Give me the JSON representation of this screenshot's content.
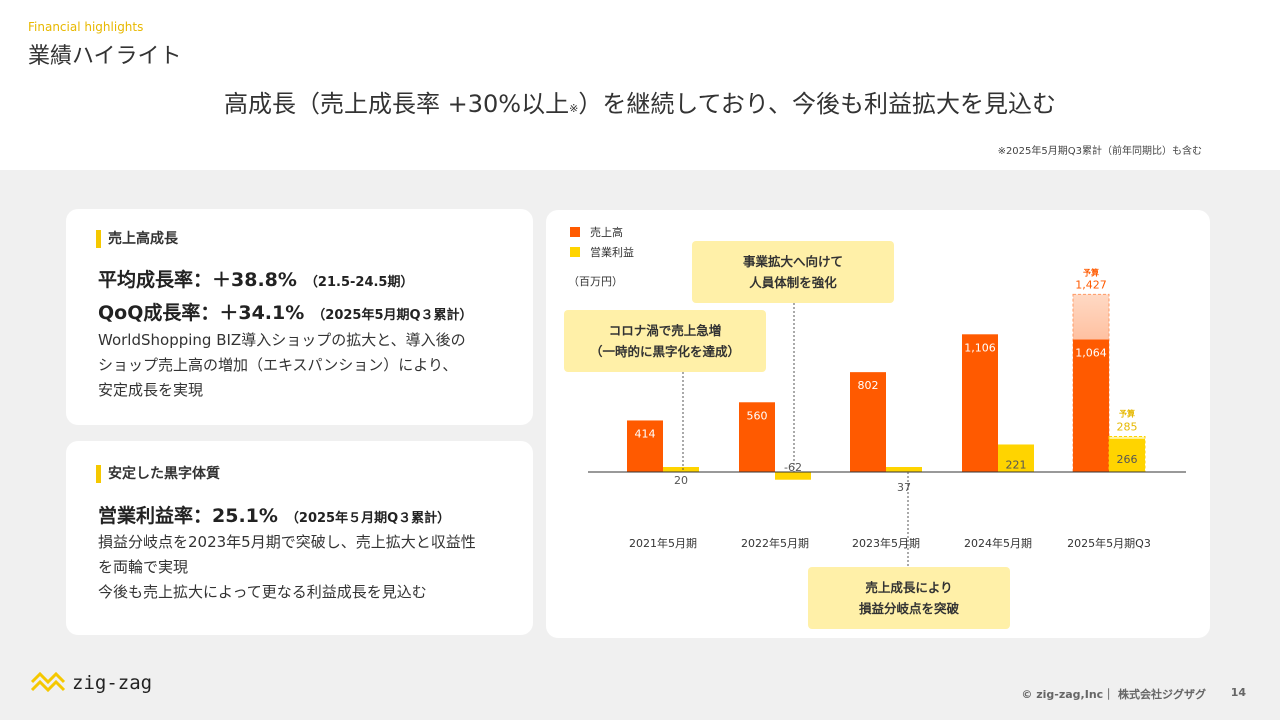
{
  "header": {
    "kicker": "Financial highlights",
    "section_title": "業績ハイライト",
    "headline_main": "高成長（売上成長率 +30%以上",
    "headline_mark": "※",
    "headline_tail": "）を継続しており、今後も利益拡大を見込む",
    "footnote": "※2025年5月期Q3累計（前年同期比）も含む"
  },
  "card_sales": {
    "title": "売上高成長",
    "kpi1_label": "平均成長率：＋38.8%",
    "kpi1_note": "（21.5-24.5期）",
    "kpi2_label": "QoQ成長率：＋34.1%",
    "kpi2_note": "（2025年5月期Q３累計）",
    "desc_lines": [
      "WorldShopping BIZ導入ショップの拡大と、導入後の",
      "ショップ売上高の増加（エキスパンション）により、",
      "安定成長を実現"
    ]
  },
  "card_profit": {
    "title": "安定した黒字体質",
    "kpi1_label": "営業利益率：25.1%",
    "kpi1_note": "（2025年５月期Q３累計）",
    "desc_lines": [
      "損益分岐点を2023年5月期で突破し、売上拡大と収益性",
      "を両輪で実現",
      "今後も売上拡大によって更なる利益成長を見込む"
    ]
  },
  "chart_data": {
    "type": "bar",
    "categories": [
      "2021年5月期",
      "2022年5月期",
      "2023年5月期",
      "2024年5月期",
      "2025年5月期Q3"
    ],
    "series": [
      {
        "name": "売上高",
        "values": [
          414,
          560,
          802,
          1106,
          1064
        ],
        "color": "#ff5a00"
      },
      {
        "name": "営業利益",
        "values": [
          20,
          -62,
          37,
          221,
          266
        ],
        "color": "#ffd400"
      }
    ],
    "forecast": {
      "label": "予算",
      "sales": 1427,
      "sales_label": "1,427",
      "profit": 285,
      "profit_label": "285"
    },
    "value_labels": {
      "sales": [
        "414",
        "560",
        "802",
        "1,106",
        "1,064"
      ],
      "profit": [
        "20",
        "-62",
        "37",
        "221",
        "266"
      ]
    },
    "unit": "（百万円）",
    "legend_position": "top-left",
    "ylim": [
      -62,
      1427
    ],
    "annotations": [
      {
        "lines": [
          "コロナ渦で売上急増",
          "（一時的に黒字化を達成）"
        ],
        "category": 0
      },
      {
        "lines": [
          "事業拡大へ向けて",
          "人員体制を強化"
        ],
        "category": 1
      },
      {
        "lines": [
          "売上成長により",
          "損益分岐点を突破"
        ],
        "category": 2
      }
    ]
  },
  "footer": {
    "logo_text": "zig-zag",
    "copyright": "© zig-zag,Inc｜ 株式会社ジグザグ",
    "page_number": "14"
  },
  "colors": {
    "accent_yellow": "#f5c800",
    "sales_orange": "#ff5a00",
    "profit_yellow": "#ffd400",
    "callout_bg": "#fff0a8"
  }
}
